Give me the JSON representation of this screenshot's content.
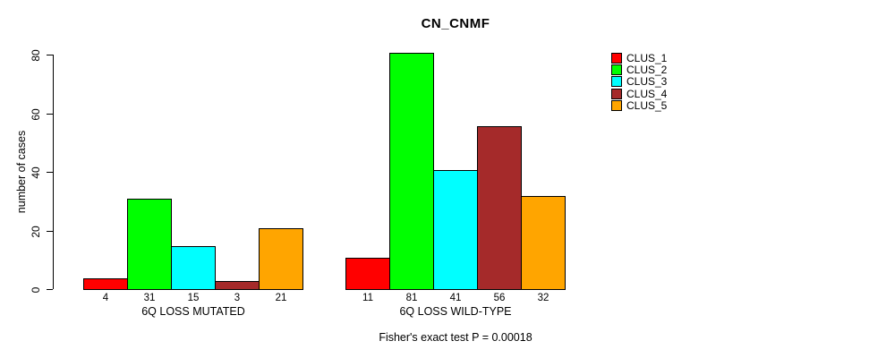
{
  "chart_data": {
    "type": "bar",
    "title": "CN_CNMF",
    "ylabel": "number of cases",
    "xlabel": "",
    "annotation": "Fisher's exact test P = 0.00018",
    "yticks": [
      0,
      20,
      40,
      60,
      80
    ],
    "ylim": [
      0,
      85
    ],
    "grid": false,
    "legend_position": "right",
    "bar_border_color": "#000000",
    "categories": [
      "6Q LOSS MUTATED",
      "6Q LOSS WILD-TYPE"
    ],
    "series": [
      {
        "name": "CLUS_1",
        "color": "#FF0000",
        "values": [
          4,
          11
        ]
      },
      {
        "name": "CLUS_2",
        "color": "#00FF00",
        "values": [
          31,
          81
        ]
      },
      {
        "name": "CLUS_3",
        "color": "#00FFFF",
        "values": [
          15,
          41
        ]
      },
      {
        "name": "CLUS_4",
        "color": "#A52A2A",
        "values": [
          3,
          56
        ]
      },
      {
        "name": "CLUS_5",
        "color": "#FFA500",
        "values": [
          21,
          32
        ]
      }
    ]
  }
}
